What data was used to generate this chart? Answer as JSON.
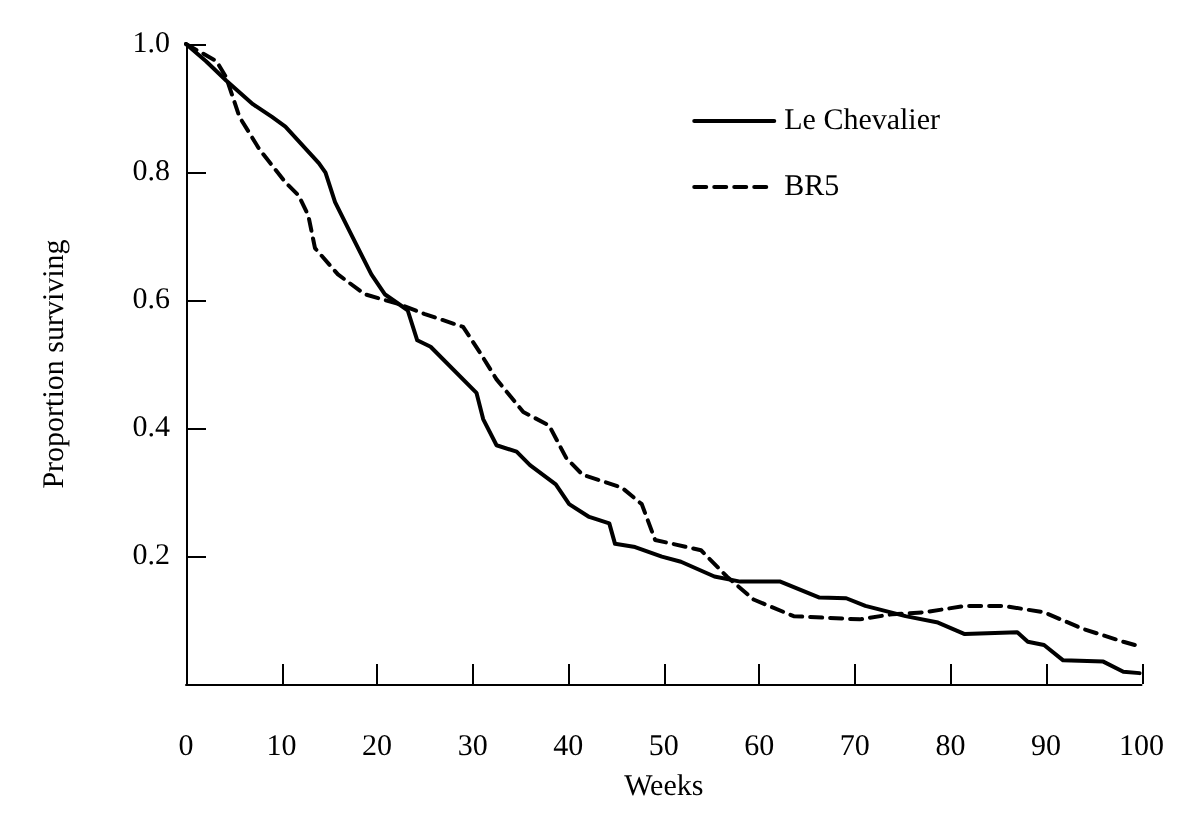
{
  "chart_data": {
    "type": "line",
    "xlabel": "Weeks",
    "ylabel": "Proportion surviving",
    "xlim": [
      0,
      100
    ],
    "xticks": [
      0,
      10,
      20,
      30,
      40,
      50,
      60,
      70,
      80,
      90,
      100
    ],
    "ylim": [
      0,
      1
    ],
    "yticks": [
      0.2,
      0.4,
      0.6,
      0.8,
      {
        "value": 1,
        "label": "1.0"
      }
    ],
    "grid": false,
    "legend": "top right",
    "marker": "none",
    "series": [
      {
        "name": "Le Chevalier",
        "color": "#000000",
        "line_style": "solid",
        "x": [
          0,
          2.1,
          4.2,
          7,
          9,
          10.4,
          13.9,
          14.6,
          15.6,
          17.3,
          19.4,
          20.8,
          23.2,
          24.2,
          25.6,
          30.4,
          31.1,
          32.5,
          34.6,
          36,
          38.7,
          40.1,
          42.2,
          44.3,
          44.9,
          47,
          49.8,
          51.8,
          55.3,
          58,
          62.2,
          66.3,
          69.1,
          71.1,
          75.3,
          78.7,
          81.5,
          87,
          88.1,
          89.8,
          91.8,
          96,
          98.1,
          99.8
        ],
        "values": [
          1,
          0.973,
          0.943,
          0.906,
          0.886,
          0.871,
          0.814,
          0.799,
          0.753,
          0.702,
          0.64,
          0.609,
          0.584,
          0.537,
          0.527,
          0.455,
          0.414,
          0.373,
          0.363,
          0.342,
          0.312,
          0.281,
          0.261,
          0.251,
          0.219,
          0.214,
          0.199,
          0.191,
          0.168,
          0.16,
          0.16,
          0.135,
          0.134,
          0.122,
          0.106,
          0.096,
          0.078,
          0.081,
          0.066,
          0.061,
          0.037,
          0.035,
          0.019,
          0.017
        ]
      },
      {
        "name": "BR5",
        "color": "#000000",
        "line_style": "dashed",
        "x": [
          0,
          3.2,
          4.2,
          5.6,
          7.7,
          10.4,
          11.8,
          12.8,
          13.5,
          15.9,
          18.7,
          22.2,
          25,
          29,
          30.8,
          32.5,
          35.3,
          38,
          39.8,
          41.5,
          45.6,
          47.7,
          49.1,
          53.9,
          56.6,
          59.4,
          63.6,
          70.5,
          73.9,
          77.3,
          81.5,
          85.6,
          89.8,
          93.9,
          98.1,
          99.5
        ],
        "values": [
          1,
          0.973,
          0.948,
          0.886,
          0.835,
          0.784,
          0.763,
          0.732,
          0.681,
          0.64,
          0.609,
          0.594,
          0.578,
          0.558,
          0.517,
          0.476,
          0.425,
          0.404,
          0.353,
          0.327,
          0.307,
          0.281,
          0.225,
          0.209,
          0.168,
          0.132,
          0.106,
          0.101,
          0.109,
          0.112,
          0.122,
          0.122,
          0.112,
          0.086,
          0.066,
          0.06
        ]
      }
    ]
  }
}
